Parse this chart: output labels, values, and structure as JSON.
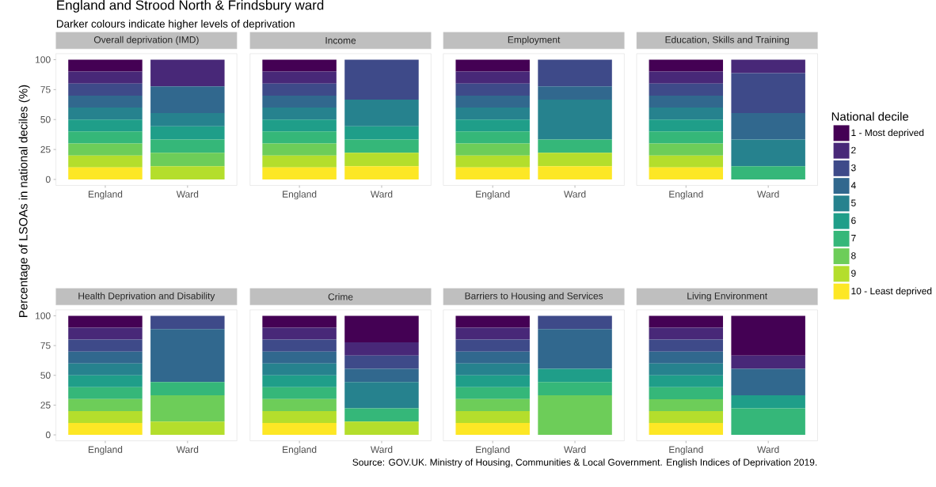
{
  "chart_data": [
    {
      "type": "bar",
      "stacked": true,
      "title": "Overall deprivation (IMD)",
      "ylabel": "Percentage of LSOAs in national deciles (%)",
      "annotations": [
        "England and Strood North & Frindsbury ward",
        "Darker colours indicate higher levels of deprivation"
      ],
      "categories": [
        "England",
        "Ward"
      ],
      "ylim": [
        -5,
        105
      ],
      "yticks": [
        0,
        25,
        50,
        75,
        100
      ],
      "series": [
        {
          "color": "#fde725",
          "values": [
            10,
            0
          ]
        },
        {
          "color": "#b4de2c",
          "values": [
            10,
            11.1
          ]
        },
        {
          "color": "#6dcd59",
          "values": [
            10,
            11.1
          ]
        },
        {
          "color": "#35b779",
          "values": [
            10,
            11.1
          ]
        },
        {
          "color": "#1f9e89",
          "values": [
            10,
            11.1
          ]
        },
        {
          "color": "#26828e",
          "values": [
            10,
            11.1
          ]
        },
        {
          "color": "#31688e",
          "values": [
            10,
            22.2
          ]
        },
        {
          "color": "#3e4a89",
          "values": [
            10,
            0
          ]
        },
        {
          "color": "#482878",
          "values": [
            10,
            22.2
          ]
        },
        {
          "color": "#440154",
          "values": [
            10,
            0
          ]
        }
      ]
    },
    {
      "type": "bar",
      "stacked": true,
      "title": "Income",
      "tick_labels": "x",
      "categories": [
        "England",
        "Ward"
      ],
      "ylim": [
        -5,
        105
      ],
      "yticks": [
        0,
        25,
        50,
        75,
        100
      ],
      "series": [
        {
          "color": "#fde725",
          "values": [
            10,
            11.1
          ]
        },
        {
          "color": "#b4de2c",
          "values": [
            10,
            11.1
          ]
        },
        {
          "color": "#6dcd59",
          "values": [
            10,
            0
          ]
        },
        {
          "color": "#35b779",
          "values": [
            10,
            11.1
          ]
        },
        {
          "color": "#1f9e89",
          "values": [
            10,
            11.1
          ]
        },
        {
          "color": "#26828e",
          "values": [
            10,
            22.2
          ]
        },
        {
          "color": "#31688e",
          "values": [
            10,
            0
          ]
        },
        {
          "color": "#3e4a89",
          "values": [
            10,
            33.3
          ]
        },
        {
          "color": "#482878",
          "values": [
            10,
            0
          ]
        },
        {
          "color": "#440154",
          "values": [
            10,
            0
          ]
        }
      ]
    },
    {
      "type": "bar",
      "stacked": true,
      "title": "Employment",
      "tick_labels": "x",
      "categories": [
        "England",
        "Ward"
      ],
      "ylim": [
        -5,
        105
      ],
      "yticks": [
        0,
        25,
        50,
        75,
        100
      ],
      "series": [
        {
          "color": "#fde725",
          "values": [
            10,
            11.1
          ]
        },
        {
          "color": "#b4de2c",
          "values": [
            10,
            11.1
          ]
        },
        {
          "color": "#6dcd59",
          "values": [
            10,
            0
          ]
        },
        {
          "color": "#35b779",
          "values": [
            10,
            11.1
          ]
        },
        {
          "color": "#1f9e89",
          "values": [
            10,
            0
          ]
        },
        {
          "color": "#26828e",
          "values": [
            10,
            33.3
          ]
        },
        {
          "color": "#31688e",
          "values": [
            10,
            11.1
          ]
        },
        {
          "color": "#3e4a89",
          "values": [
            10,
            22.2
          ]
        },
        {
          "color": "#482878",
          "values": [
            10,
            0
          ]
        },
        {
          "color": "#440154",
          "values": [
            10,
            0
          ]
        }
      ]
    },
    {
      "type": "bar",
      "stacked": true,
      "title": "Education, Skills and Training",
      "tick_labels": "x",
      "legend": "right",
      "legend_title": "National decile",
      "categories": [
        "England",
        "Ward"
      ],
      "ylim": [
        -5,
        105
      ],
      "yticks": [
        0,
        25,
        50,
        75,
        100
      ],
      "series": [
        {
          "name": "10 - Least deprived",
          "color": "#fde725",
          "values": [
            10,
            0
          ]
        },
        {
          "name": "9",
          "color": "#b4de2c",
          "values": [
            10,
            0
          ]
        },
        {
          "name": "8",
          "color": "#6dcd59",
          "values": [
            10,
            0
          ]
        },
        {
          "name": "7",
          "color": "#35b779",
          "values": [
            10,
            11.1
          ]
        },
        {
          "name": "6",
          "color": "#1f9e89",
          "values": [
            10,
            0
          ]
        },
        {
          "name": "5",
          "color": "#26828e",
          "values": [
            10,
            22.2
          ]
        },
        {
          "name": "4",
          "color": "#31688e",
          "values": [
            10,
            22.2
          ]
        },
        {
          "name": "3",
          "color": "#3e4a89",
          "values": [
            10,
            33.3
          ]
        },
        {
          "name": "2",
          "color": "#482878",
          "values": [
            10,
            11.1
          ]
        },
        {
          "name": "1 - Most deprived",
          "color": "#440154",
          "values": [
            10,
            0
          ]
        }
      ]
    },
    {
      "type": "bar",
      "stacked": true,
      "title": "Health Deprivation and Disability",
      "categories": [
        "England",
        "Ward"
      ],
      "ylim": [
        -5,
        105
      ],
      "yticks": [
        0,
        25,
        50,
        75,
        100
      ],
      "series": [
        {
          "color": "#fde725",
          "values": [
            10,
            0
          ]
        },
        {
          "color": "#b4de2c",
          "values": [
            10,
            11.1
          ]
        },
        {
          "color": "#6dcd59",
          "values": [
            10,
            22.2
          ]
        },
        {
          "color": "#35b779",
          "values": [
            10,
            11.1
          ]
        },
        {
          "color": "#1f9e89",
          "values": [
            10,
            0
          ]
        },
        {
          "color": "#26828e",
          "values": [
            10,
            0
          ]
        },
        {
          "color": "#31688e",
          "values": [
            10,
            44.4
          ]
        },
        {
          "color": "#3e4a89",
          "values": [
            10,
            11.1
          ]
        },
        {
          "color": "#482878",
          "values": [
            10,
            0
          ]
        },
        {
          "color": "#440154",
          "values": [
            10,
            0
          ]
        }
      ]
    },
    {
      "type": "bar",
      "stacked": true,
      "title": "Crime",
      "tick_labels": "x",
      "categories": [
        "England",
        "Ward"
      ],
      "ylim": [
        -5,
        105
      ],
      "yticks": [
        0,
        25,
        50,
        75,
        100
      ],
      "series": [
        {
          "color": "#fde725",
          "values": [
            10,
            0
          ]
        },
        {
          "color": "#b4de2c",
          "values": [
            10,
            11.1
          ]
        },
        {
          "color": "#6dcd59",
          "values": [
            10,
            0
          ]
        },
        {
          "color": "#35b779",
          "values": [
            10,
            11.1
          ]
        },
        {
          "color": "#1f9e89",
          "values": [
            10,
            0
          ]
        },
        {
          "color": "#26828e",
          "values": [
            10,
            22.2
          ]
        },
        {
          "color": "#31688e",
          "values": [
            10,
            11.1
          ]
        },
        {
          "color": "#3e4a89",
          "values": [
            10,
            11.1
          ]
        },
        {
          "color": "#482878",
          "values": [
            10,
            11.1
          ]
        },
        {
          "color": "#440154",
          "values": [
            10,
            22.2
          ]
        }
      ]
    },
    {
      "type": "bar",
      "stacked": true,
      "title": "Barriers to Housing and Services",
      "tick_labels": "x",
      "categories": [
        "England",
        "Ward"
      ],
      "ylim": [
        -5,
        105
      ],
      "yticks": [
        0,
        25,
        50,
        75,
        100
      ],
      "series": [
        {
          "color": "#fde725",
          "values": [
            10,
            0
          ]
        },
        {
          "color": "#b4de2c",
          "values": [
            10,
            0
          ]
        },
        {
          "color": "#6dcd59",
          "values": [
            10,
            33.3
          ]
        },
        {
          "color": "#35b779",
          "values": [
            10,
            11.1
          ]
        },
        {
          "color": "#1f9e89",
          "values": [
            10,
            11.1
          ]
        },
        {
          "color": "#26828e",
          "values": [
            10,
            0
          ]
        },
        {
          "color": "#31688e",
          "values": [
            10,
            33.3
          ]
        },
        {
          "color": "#3e4a89",
          "values": [
            10,
            11.1
          ]
        },
        {
          "color": "#482878",
          "values": [
            10,
            0
          ]
        },
        {
          "color": "#440154",
          "values": [
            10,
            0
          ]
        }
      ]
    },
    {
      "type": "bar",
      "stacked": true,
      "title": "Living Environment",
      "tick_labels": "x",
      "annotations": [
        "Source: GOV.UK. Ministry of Housing, Communities & Local Government. English Indices of Deprivation 2019."
      ],
      "categories": [
        "England",
        "Ward"
      ],
      "ylim": [
        -5,
        105
      ],
      "yticks": [
        0,
        25,
        50,
        75,
        100
      ],
      "series": [
        {
          "color": "#fde725",
          "values": [
            10,
            0
          ]
        },
        {
          "color": "#b4de2c",
          "values": [
            10,
            0
          ]
        },
        {
          "color": "#6dcd59",
          "values": [
            10,
            0
          ]
        },
        {
          "color": "#35b779",
          "values": [
            10,
            22.2
          ]
        },
        {
          "color": "#1f9e89",
          "values": [
            10,
            11.1
          ]
        },
        {
          "color": "#26828e",
          "values": [
            10,
            0
          ]
        },
        {
          "color": "#31688e",
          "values": [
            10,
            22.2
          ]
        },
        {
          "color": "#3e4a89",
          "values": [
            10,
            0
          ]
        },
        {
          "color": "#482878",
          "values": [
            10,
            11.1
          ]
        },
        {
          "color": "#440154",
          "values": [
            10,
            33.3
          ]
        }
      ]
    }
  ]
}
